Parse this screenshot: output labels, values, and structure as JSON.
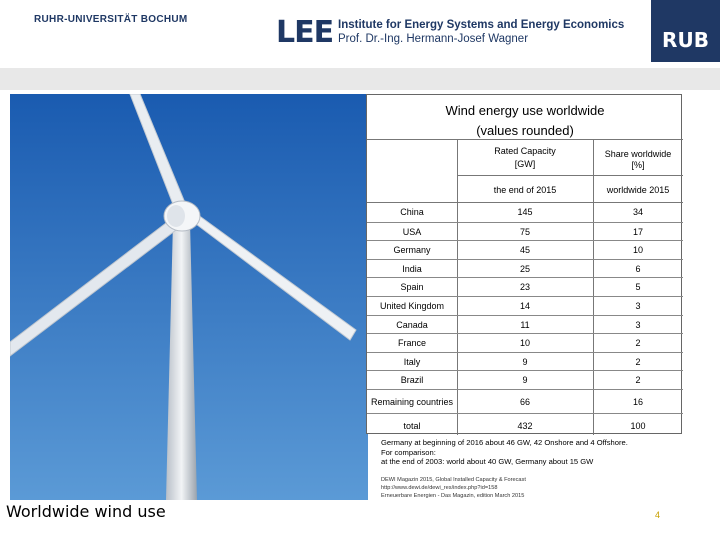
{
  "header": {
    "university": "RUHR-UNIVERSITÄT BOCHUM",
    "lee_logo": "LEE",
    "institute": "Institute for Energy Systems and Energy Economics",
    "professor": "Prof. Dr.-Ing. Hermann-Josef Wagner",
    "rub_logo": "RUB"
  },
  "table": {
    "title_line1": "Wind energy use worldwide",
    "title_line2": "(values rounded)",
    "col_capacity_line1": "Rated Capacity",
    "col_capacity_line2": "[GW]",
    "col_share_line1": "Share worldwide",
    "col_share_line2": "[%]",
    "col_capacity_sub": "the end of 2015",
    "col_share_sub": "worldwide 2015",
    "rows": [
      {
        "country": "China",
        "capacity": "145",
        "share": "34"
      },
      {
        "country": "USA",
        "capacity": "75",
        "share": "17"
      },
      {
        "country": "Germany",
        "capacity": "45",
        "share": "10"
      },
      {
        "country": "India",
        "capacity": "25",
        "share": "6"
      },
      {
        "country": "Spain",
        "capacity": "23",
        "share": "5"
      },
      {
        "country": "United Kingdom",
        "capacity": "14",
        "share": "3"
      },
      {
        "country": "Canada",
        "capacity": "11",
        "share": "3"
      },
      {
        "country": "France",
        "capacity": "10",
        "share": "2"
      },
      {
        "country": "Italy",
        "capacity": "9",
        "share": "2"
      },
      {
        "country": "Brazil",
        "capacity": "9",
        "share": "2"
      },
      {
        "country": "Remaining countries",
        "capacity": "66",
        "share": "16"
      },
      {
        "country": "total",
        "capacity": "432",
        "share": "100"
      }
    ]
  },
  "notes": {
    "line1": "Germany at beginning of 2016 about 46 GW, 42 Onshore and 4 Offshore.",
    "line2": "For comparison:",
    "line3": "at the end of 2003: world about 40 GW, Germany about 15 GW"
  },
  "sources": {
    "line1": "DEWI Magazin 2015, Global Installed Capacity & Forecast",
    "line2": "http://www.dewi.de/dewi_res/index.php?id=158",
    "line3": "Erneuerbare Energien - Das Magazin, edition March 2015"
  },
  "footer": {
    "title": "Worldwide wind use",
    "page": "4"
  },
  "colors": {
    "brand": "#1f3864",
    "page_number": "#c8a000",
    "sky_top": "#1a5bb0",
    "sky_bottom": "#4f8fcf"
  }
}
